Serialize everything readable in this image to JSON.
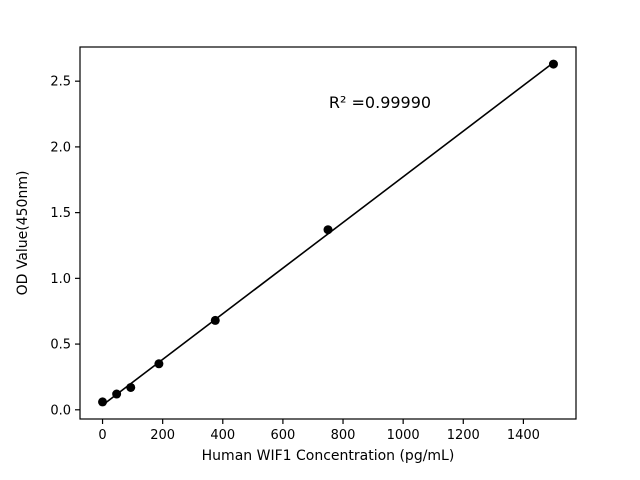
{
  "chart_data": {
    "type": "scatter",
    "title": "",
    "xlabel": "Human WIF1 Concentration (pg/mL)",
    "ylabel": "OD Value(450nm)",
    "annotation": "R² =0.99990",
    "x": [
      0,
      46.9,
      93.8,
      187.5,
      375,
      750,
      1500
    ],
    "y": [
      0.06,
      0.12,
      0.17,
      0.35,
      0.68,
      1.37,
      2.63
    ],
    "fit_line": true,
    "xlim": [
      -75,
      1575
    ],
    "ylim": [
      -0.07,
      2.76
    ],
    "x_ticks": [
      0,
      200,
      400,
      600,
      800,
      1000,
      1200,
      1400
    ],
    "y_ticks": [
      "0.0",
      "0.5",
      "1.0",
      "1.5",
      "2.0",
      "2.5"
    ],
    "grid": false,
    "legend": "none",
    "marker_color": "#000000",
    "line_color": "#000000",
    "axis_color": "#000000",
    "background": "#ffffff"
  }
}
